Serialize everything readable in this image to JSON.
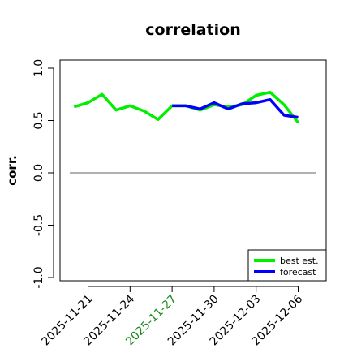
{
  "chart_data": {
    "type": "line",
    "title": "correlation",
    "xlabel": "",
    "ylabel": "corr.",
    "ylim": [
      -1.0,
      1.0
    ],
    "yticks": [
      "-1.0",
      "-0.5",
      "0.0",
      "0.5",
      "1.0"
    ],
    "xlim": [
      "2025-11-19",
      "2025-12-08"
    ],
    "xticks": [
      {
        "label": "2025-11-21",
        "x": "2025-11-21",
        "color": "#000000"
      },
      {
        "label": "2025-11-24",
        "x": "2025-11-24",
        "color": "#000000"
      },
      {
        "label": "2025-11-27",
        "x": "2025-11-27",
        "color": "#1a8c1a"
      },
      {
        "label": "2025-11-30",
        "x": "2025-11-30",
        "color": "#000000"
      },
      {
        "label": "2025-12-03",
        "x": "2025-12-03",
        "color": "#000000"
      },
      {
        "label": "2025-12-06",
        "x": "2025-12-06",
        "color": "#000000"
      }
    ],
    "reference_line": {
      "y": 0.0,
      "color": "#808080"
    },
    "legend_position": "bottom-right",
    "grid": false,
    "series": [
      {
        "name": "best est.",
        "color": "#00ee00",
        "x": [
          "2025-11-20",
          "2025-11-21",
          "2025-11-22",
          "2025-11-23",
          "2025-11-24",
          "2025-11-25",
          "2025-11-26",
          "2025-11-27",
          "2025-11-28",
          "2025-11-29",
          "2025-11-30",
          "2025-12-01",
          "2025-12-02",
          "2025-12-03",
          "2025-12-04",
          "2025-12-05",
          "2025-12-06"
        ],
        "values": [
          0.63,
          0.67,
          0.75,
          0.6,
          0.64,
          0.59,
          0.51,
          0.64,
          0.64,
          0.6,
          0.65,
          0.63,
          0.65,
          0.74,
          0.77,
          0.65,
          0.48
        ]
      },
      {
        "name": "forecast",
        "color": "#0000ff",
        "x": [
          "2025-11-27",
          "2025-11-28",
          "2025-11-29",
          "2025-11-30",
          "2025-12-01",
          "2025-12-02",
          "2025-12-03",
          "2025-12-04",
          "2025-12-05",
          "2025-12-06"
        ],
        "values": [
          0.64,
          0.64,
          0.61,
          0.67,
          0.61,
          0.66,
          0.67,
          0.7,
          0.55,
          0.53
        ]
      }
    ]
  }
}
